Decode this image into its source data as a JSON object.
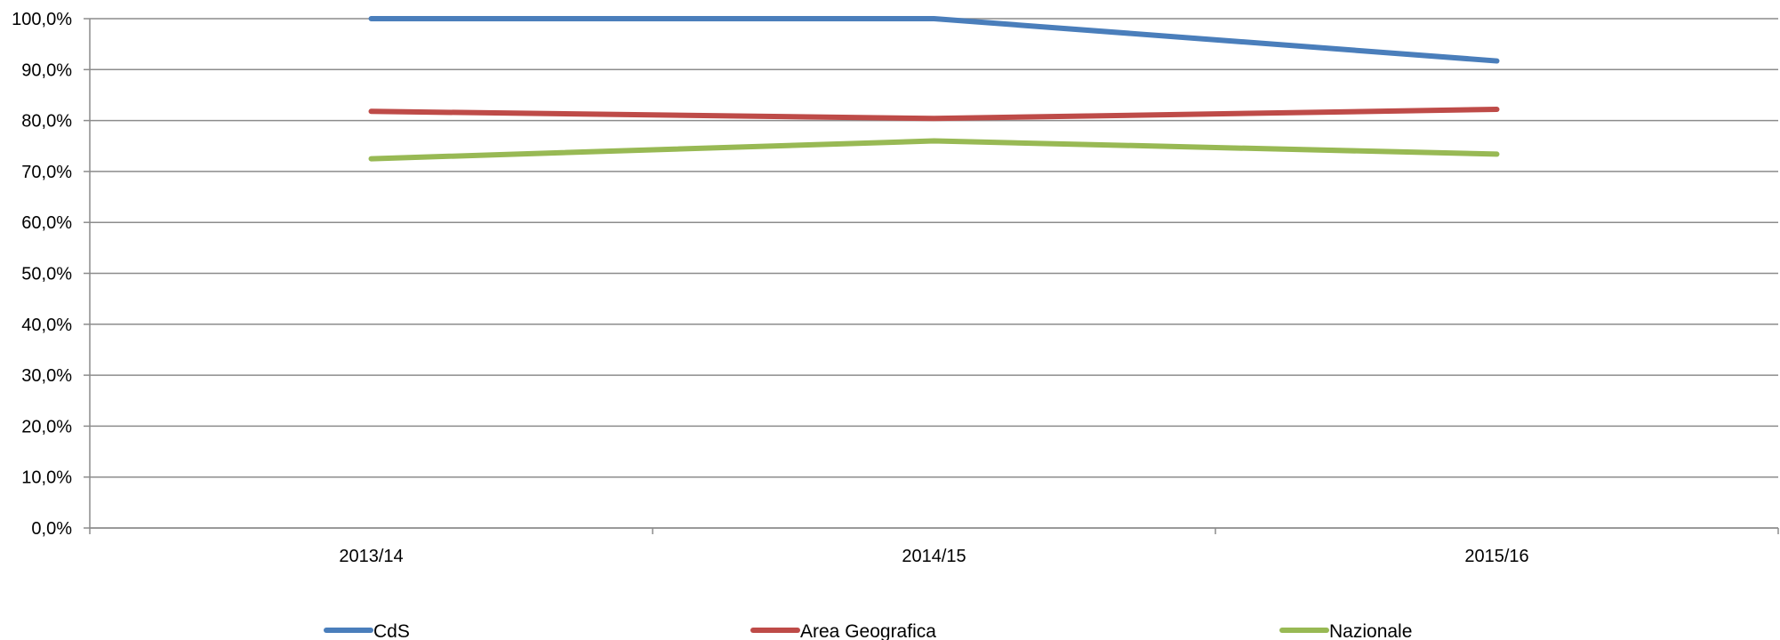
{
  "chart_data": {
    "type": "line",
    "title": "",
    "xlabel": "",
    "ylabel": "",
    "categories": [
      "2013/14",
      "2014/15",
      "2015/16"
    ],
    "ylim": [
      0,
      100
    ],
    "y_ticks": [
      0,
      10,
      20,
      30,
      40,
      50,
      60,
      70,
      80,
      90,
      100
    ],
    "y_tick_labels": [
      "0,0%",
      "10,0%",
      "20,0%",
      "30,0%",
      "40,0%",
      "50,0%",
      "60,0%",
      "70,0%",
      "80,0%",
      "90,0%",
      "100,0%"
    ],
    "grid": true,
    "legend_position": "bottom",
    "series": [
      {
        "name": "CdS",
        "color": "#4a7ebb",
        "values": [
          100.0,
          100.0,
          91.7
        ]
      },
      {
        "name": "Area Geografica",
        "color": "#be4b48",
        "values": [
          81.8,
          80.4,
          82.2
        ]
      },
      {
        "name": "Nazionale",
        "color": "#98b954",
        "values": [
          72.5,
          76.0,
          73.4
        ]
      }
    ]
  }
}
